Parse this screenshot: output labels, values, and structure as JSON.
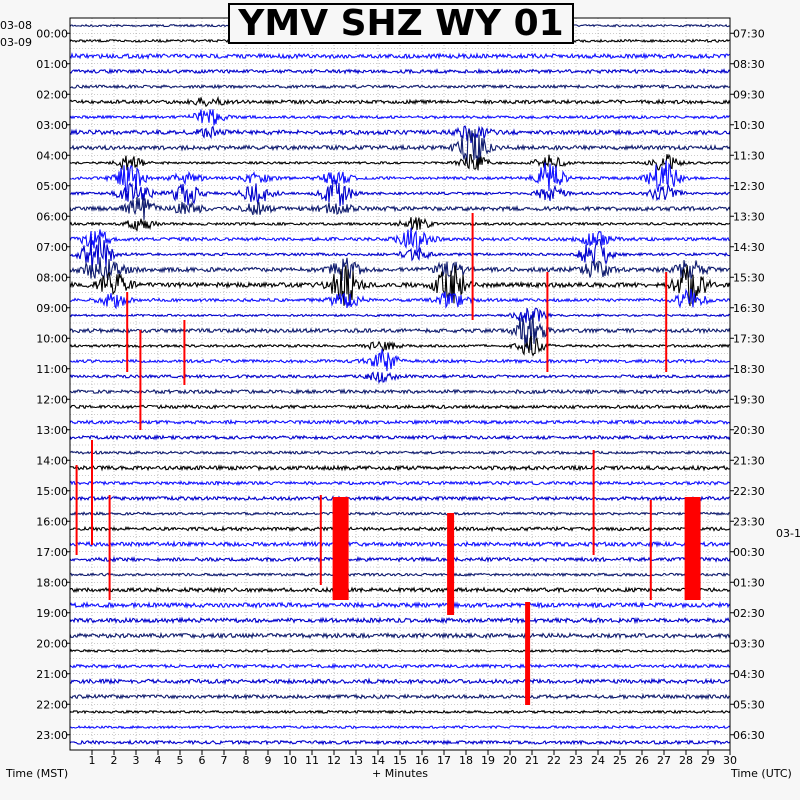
{
  "chart_data": {
    "type": "line",
    "title": "YMV SHZ WY 01",
    "xlabel": "+ Minutes",
    "left_axis_label": "Time (MST)",
    "right_axis_label": "Time (UTC)",
    "x_range": [
      0,
      30
    ],
    "x_ticks": [
      "1",
      "2",
      "3",
      "4",
      "5",
      "6",
      "7",
      "8",
      "9",
      "10",
      "11",
      "12",
      "13",
      "14",
      "15",
      "16",
      "17",
      "18",
      "19",
      "20",
      "21",
      "22",
      "23",
      "24",
      "25",
      "26",
      "27",
      "28",
      "29",
      "30"
    ],
    "left_date_start": "03-08",
    "left_date_next": "03-09",
    "right_date_next": "03-1",
    "left_ticks": [
      "00:00",
      "01:00",
      "02:00",
      "03:00",
      "04:00",
      "05:00",
      "06:00",
      "07:00",
      "08:00",
      "09:00",
      "10:00",
      "11:00",
      "12:00",
      "13:00",
      "14:00",
      "15:00",
      "16:00",
      "17:00",
      "18:00",
      "19:00",
      "20:00",
      "21:00",
      "22:00",
      "23:00"
    ],
    "right_ticks": [
      "07:30",
      "08:30",
      "09:30",
      "10:30",
      "11:30",
      "12:30",
      "13:30",
      "14:30",
      "15:30",
      "16:30",
      "17:30",
      "18:30",
      "19:30",
      "20:30",
      "21:30",
      "22:30",
      "23:30",
      "00:30",
      "01:30",
      "02:30",
      "03:30",
      "04:30",
      "05:30",
      "06:30"
    ],
    "rows": 48,
    "trace_colors": [
      "#0f1b6e",
      "#000000",
      "#1010ff",
      "#0000cc"
    ],
    "clip_color": "#ff0000",
    "events": [
      {
        "row": 10,
        "minute": 2.7,
        "amp": 1.6
      },
      {
        "row": 12,
        "minute": 3.2,
        "amp": 1.4
      },
      {
        "row": 6,
        "minute": 6.3,
        "amp": 1.0
      },
      {
        "row": 11,
        "minute": 5.3,
        "amp": 1.3
      },
      {
        "row": 11,
        "minute": 8.5,
        "amp": 1.2
      },
      {
        "row": 11,
        "minute": 12.1,
        "amp": 1.6
      },
      {
        "row": 8,
        "minute": 18.3,
        "amp": 2.2
      },
      {
        "row": 10,
        "minute": 21.8,
        "amp": 1.8
      },
      {
        "row": 10,
        "minute": 27.0,
        "amp": 2.0
      },
      {
        "row": 14,
        "minute": 15.7,
        "amp": 1.6
      },
      {
        "row": 15,
        "minute": 1.2,
        "amp": 2.2
      },
      {
        "row": 15,
        "minute": 23.9,
        "amp": 1.8
      },
      {
        "row": 17,
        "minute": 12.5,
        "amp": 2.5
      },
      {
        "row": 17,
        "minute": 17.3,
        "amp": 2.2
      },
      {
        "row": 17,
        "minute": 28.2,
        "amp": 2.4
      },
      {
        "row": 17,
        "minute": 2.0,
        "amp": 1.6
      },
      {
        "row": 20,
        "minute": 20.9,
        "amp": 2.2
      },
      {
        "row": 22,
        "minute": 14.2,
        "amp": 1.2
      }
    ],
    "clips": [
      {
        "minute": 12.3,
        "top": 497,
        "bottom": 600,
        "width": 16
      },
      {
        "minute": 28.3,
        "top": 497,
        "bottom": 600,
        "width": 16
      },
      {
        "minute": 17.3,
        "top": 513,
        "bottom": 615,
        "width": 7
      },
      {
        "minute": 20.8,
        "top": 602,
        "bottom": 705,
        "width": 5
      },
      {
        "minute": 18.3,
        "top": 213,
        "bottom": 320,
        "width": 2
      },
      {
        "minute": 0.3,
        "top": 465,
        "bottom": 555,
        "width": 2
      },
      {
        "minute": 1.0,
        "top": 440,
        "bottom": 545,
        "width": 2
      },
      {
        "minute": 2.6,
        "top": 292,
        "bottom": 372,
        "width": 2
      },
      {
        "minute": 3.2,
        "top": 330,
        "bottom": 430,
        "width": 2
      },
      {
        "minute": 5.2,
        "top": 320,
        "bottom": 385,
        "width": 2
      },
      {
        "minute": 21.7,
        "top": 272,
        "bottom": 372,
        "width": 2
      },
      {
        "minute": 27.1,
        "top": 272,
        "bottom": 372,
        "width": 2
      },
      {
        "minute": 23.8,
        "top": 450,
        "bottom": 555,
        "width": 2
      },
      {
        "minute": 26.4,
        "top": 500,
        "bottom": 600,
        "width": 2
      },
      {
        "minute": 1.8,
        "top": 495,
        "bottom": 600,
        "width": 2
      },
      {
        "minute": 11.4,
        "top": 495,
        "bottom": 585,
        "width": 2
      }
    ]
  }
}
